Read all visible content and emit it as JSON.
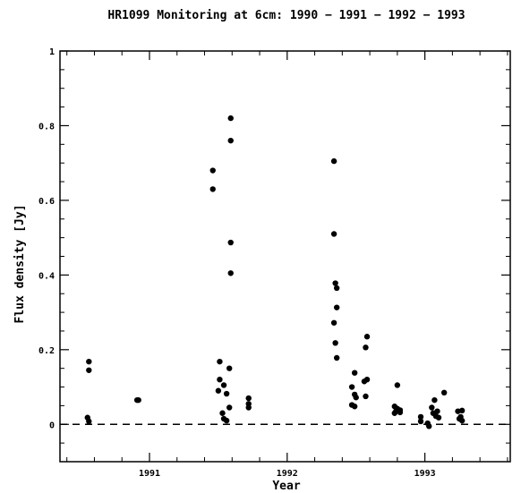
{
  "chart_data": {
    "type": "scatter",
    "title": "HR1099 Monitoring at 6cm: 1990 − 1991 − 1992 − 1993",
    "xlabel": "Year",
    "ylabel": "Flux density [Jy]",
    "xlim": [
      1990.35,
      1993.62
    ],
    "ylim": [
      -0.1,
      1.0
    ],
    "x_ticks": [
      {
        "value": 1991,
        "label": "1991"
      },
      {
        "value": 1992,
        "label": "1992"
      },
      {
        "value": 1993,
        "label": "1993"
      }
    ],
    "y_ticks": [
      {
        "value": 0,
        "label": "0"
      },
      {
        "value": 0.2,
        "label": "0.2"
      },
      {
        "value": 0.4,
        "label": "0.4"
      },
      {
        "value": 0.6,
        "label": "0.6"
      },
      {
        "value": 0.8,
        "label": "0.8"
      },
      {
        "value": 1.0,
        "label": "1"
      }
    ],
    "reference_line": {
      "y": 0,
      "style": "dashed"
    },
    "grid": false,
    "series": [
      {
        "points": [
          [
            1990.56,
            0.168
          ],
          [
            1990.56,
            0.145
          ],
          [
            1990.55,
            0.018
          ],
          [
            1990.56,
            0.008
          ],
          [
            1990.91,
            0.065
          ],
          [
            1990.92,
            0.065
          ],
          [
            1991.46,
            0.68
          ],
          [
            1991.46,
            0.63
          ],
          [
            1991.59,
            0.82
          ],
          [
            1991.59,
            0.76
          ],
          [
            1991.59,
            0.487
          ],
          [
            1991.59,
            0.405
          ],
          [
            1991.51,
            0.168
          ],
          [
            1991.51,
            0.12
          ],
          [
            1991.5,
            0.09
          ],
          [
            1991.54,
            0.105
          ],
          [
            1991.56,
            0.082
          ],
          [
            1991.58,
            0.15
          ],
          [
            1991.53,
            0.03
          ],
          [
            1991.54,
            0.015
          ],
          [
            1991.56,
            0.01
          ],
          [
            1991.58,
            0.045
          ],
          [
            1991.72,
            0.07
          ],
          [
            1991.72,
            0.055
          ],
          [
            1991.72,
            0.045
          ],
          [
            1992.34,
            0.705
          ],
          [
            1992.34,
            0.51
          ],
          [
            1992.35,
            0.378
          ],
          [
            1992.36,
            0.365
          ],
          [
            1992.36,
            0.313
          ],
          [
            1992.34,
            0.272
          ],
          [
            1992.35,
            0.218
          ],
          [
            1992.36,
            0.178
          ],
          [
            1992.49,
            0.138
          ],
          [
            1992.47,
            0.1
          ],
          [
            1992.49,
            0.08
          ],
          [
            1992.5,
            0.072
          ],
          [
            1992.47,
            0.052
          ],
          [
            1992.49,
            0.048
          ],
          [
            1992.58,
            0.235
          ],
          [
            1992.57,
            0.206
          ],
          [
            1992.58,
            0.12
          ],
          [
            1992.56,
            0.115
          ],
          [
            1992.57,
            0.075
          ],
          [
            1992.8,
            0.105
          ],
          [
            1992.78,
            0.048
          ],
          [
            1992.8,
            0.042
          ],
          [
            1992.82,
            0.038
          ],
          [
            1992.79,
            0.035
          ],
          [
            1992.82,
            0.032
          ],
          [
            1992.78,
            0.03
          ],
          [
            1992.97,
            0.02
          ],
          [
            1992.97,
            0.008
          ],
          [
            1993.02,
            0.003
          ],
          [
            1993.03,
            -0.005
          ],
          [
            1993.05,
            0.045
          ],
          [
            1993.06,
            0.03
          ],
          [
            1993.07,
            0.065
          ],
          [
            1993.08,
            0.022
          ],
          [
            1993.09,
            0.035
          ],
          [
            1993.1,
            0.018
          ],
          [
            1993.14,
            0.085
          ],
          [
            1993.24,
            0.035
          ],
          [
            1993.27,
            0.037
          ],
          [
            1993.25,
            0.015
          ],
          [
            1993.27,
            0.01
          ],
          [
            1993.26,
            0.02
          ]
        ]
      }
    ]
  }
}
